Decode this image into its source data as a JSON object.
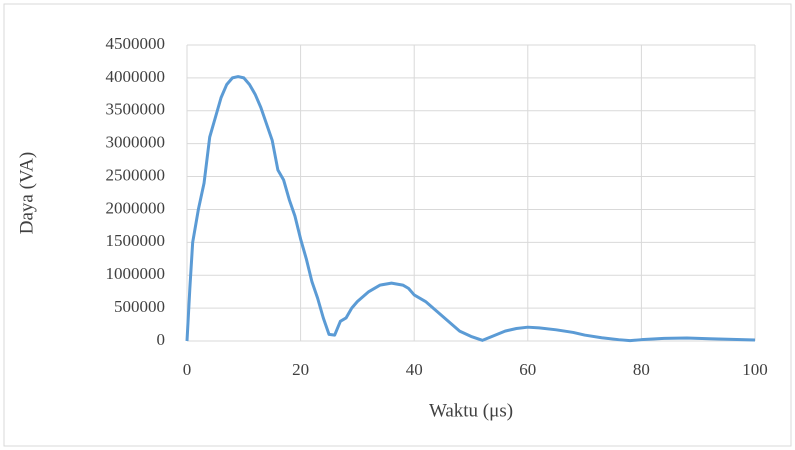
{
  "chart_data": {
    "type": "line",
    "x_label": "Waktu (μs)",
    "y_label": "Daya (VA)",
    "x": [
      0,
      0.5,
      1,
      2,
      3,
      4,
      5,
      6,
      7,
      8,
      9,
      10,
      11,
      12,
      13,
      14,
      15,
      16,
      17,
      18,
      19,
      20,
      21,
      22,
      23,
      24,
      25,
      26,
      27,
      28,
      29,
      30,
      32,
      34,
      36,
      38,
      39,
      40,
      42,
      44,
      46,
      48,
      50,
      52,
      54,
      56,
      58,
      60,
      62,
      65,
      68,
      70,
      73,
      76,
      78,
      80,
      84,
      88,
      92,
      96,
      100
    ],
    "series": [
      {
        "name": "Daya",
        "color": "#5b9bd5",
        "values": [
          0,
          800000,
          1500000,
          2000000,
          2400000,
          3100000,
          3400000,
          3700000,
          3900000,
          4000000,
          4020000,
          4000000,
          3900000,
          3750000,
          3550000,
          3300000,
          3050000,
          2600000,
          2450000,
          2150000,
          1900000,
          1550000,
          1250000,
          900000,
          650000,
          350000,
          100000,
          90000,
          300000,
          350000,
          500000,
          600000,
          750000,
          850000,
          880000,
          850000,
          800000,
          700000,
          600000,
          450000,
          300000,
          150000,
          70000,
          10000,
          80000,
          150000,
          190000,
          210000,
          200000,
          170000,
          130000,
          90000,
          50000,
          20000,
          5000,
          20000,
          40000,
          45000,
          35000,
          25000,
          15000
        ]
      }
    ],
    "xlim": [
      0,
      100
    ],
    "xticks": [
      0,
      20,
      40,
      60,
      80,
      100
    ],
    "ylim": [
      0,
      4500000
    ],
    "yticks": [
      0,
      500000,
      1000000,
      1500000,
      2000000,
      2500000,
      3000000,
      3500000,
      4000000,
      4500000
    ],
    "grid": true
  }
}
